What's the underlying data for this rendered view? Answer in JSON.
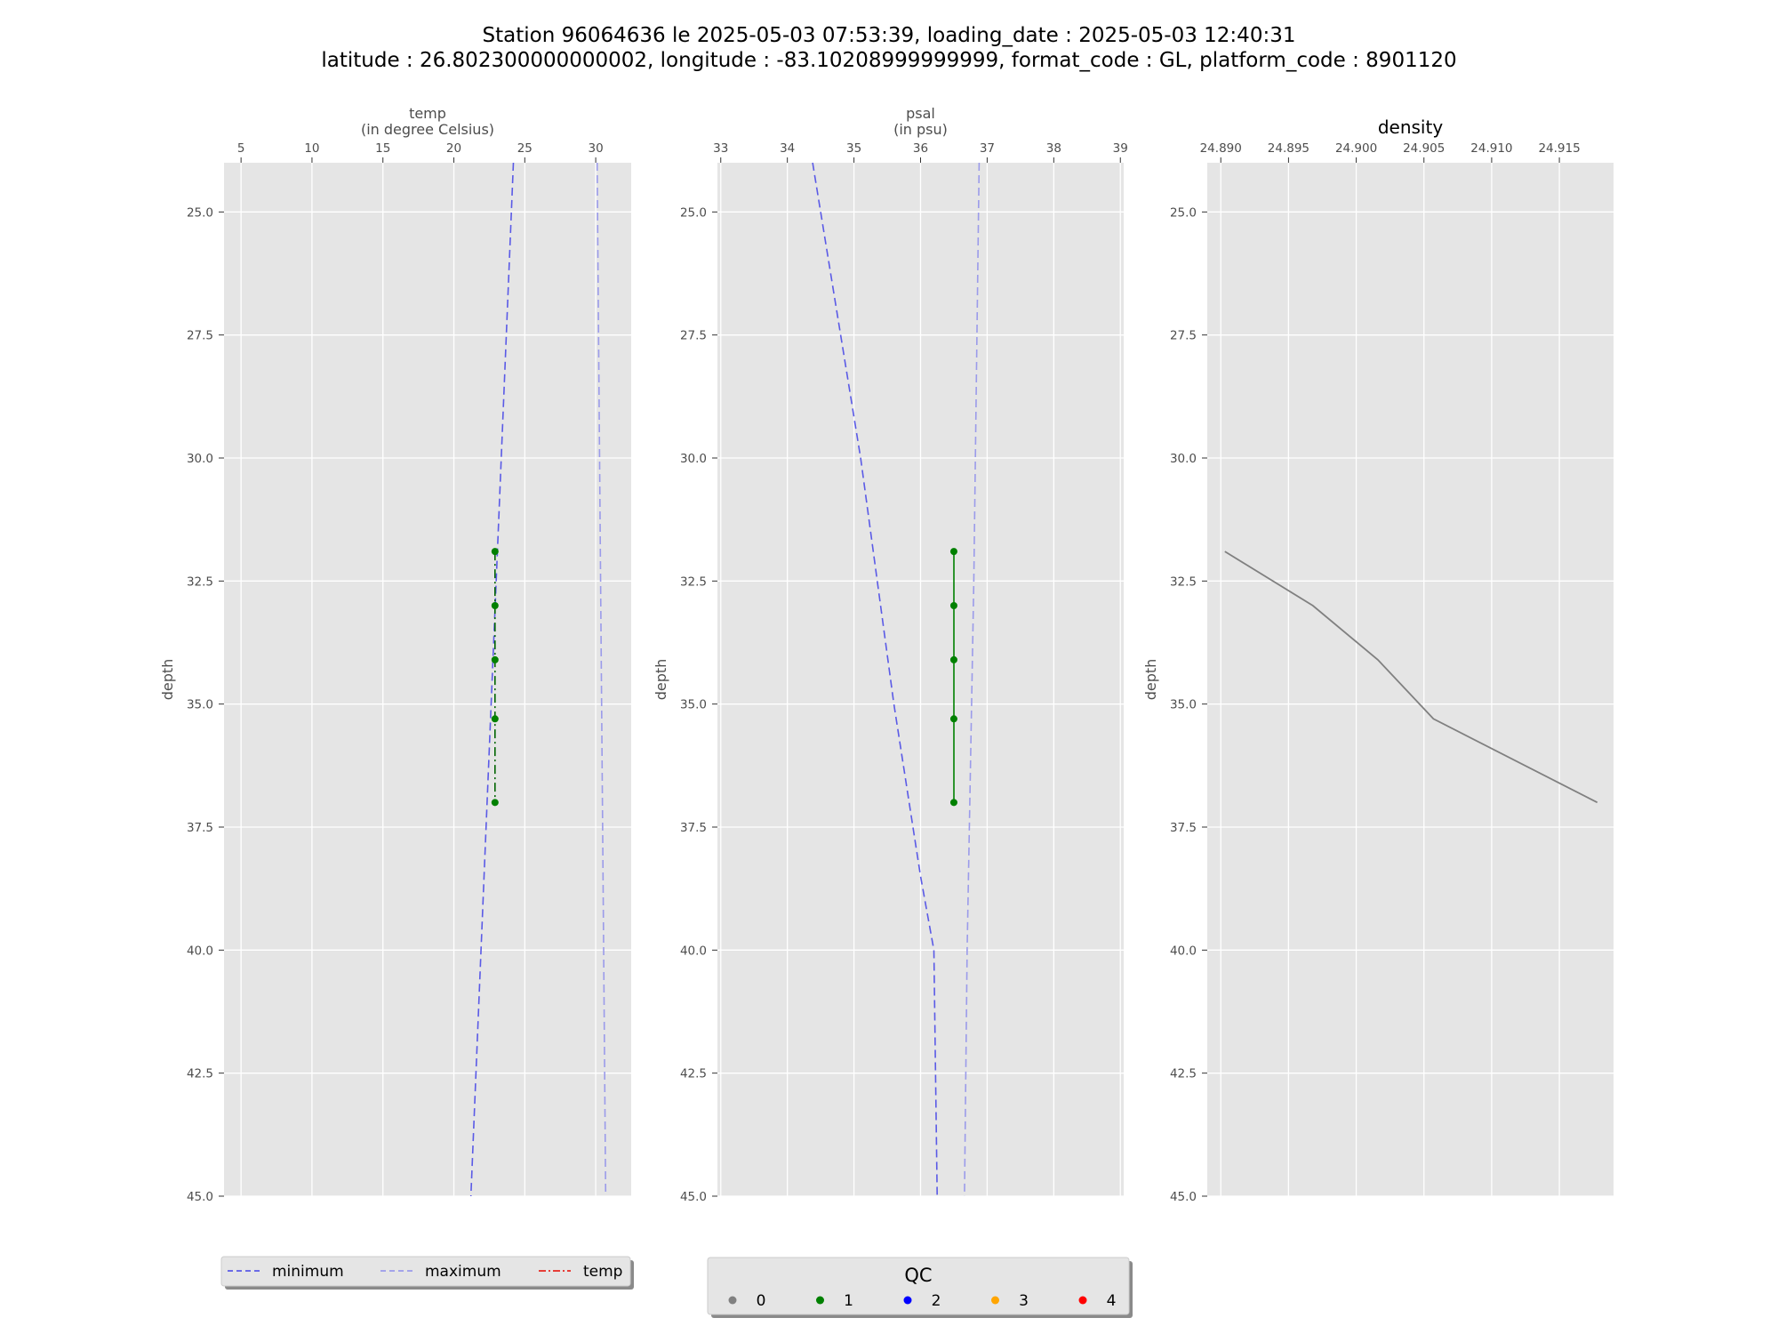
{
  "title": {
    "line1": "Station 96064636 le 2025-05-03 07:53:39, loading_date : 2025-05-03 12:40:31",
    "line2": "latitude : 26.802300000000002, longitude : -83.10208999999999, format_code : GL, platform_code : 8901120"
  },
  "colors": {
    "background": "#e5e5e5",
    "grid": "#ffffff",
    "minimum": "#5a5ae6",
    "maximum": "#9b9bea",
    "temp": "#e6261f",
    "qc0": "#808080",
    "qc1": "#008000",
    "qc2": "#0000ff",
    "qc3": "#ffa500",
    "qc4": "#ff0000",
    "density_line": "#808080"
  },
  "chart_data": [
    {
      "type": "line",
      "id": "temp",
      "xlabel": "temp\n(in degree Celsius)",
      "ylabel": "depth",
      "x_axis_position": "top",
      "xlim": [
        3.8,
        32.5
      ],
      "ylim": [
        45.0,
        24.0
      ],
      "y_inverted": true,
      "xticks": [
        5,
        10,
        15,
        20,
        25,
        30
      ],
      "yticks": [
        25.0,
        27.5,
        30.0,
        32.5,
        35.0,
        37.5,
        40.0,
        42.5,
        45.0
      ],
      "grid": true,
      "series": [
        {
          "name": "minimum",
          "style": "dashed",
          "x": [
            24.2,
            21.2
          ],
          "y": [
            24.0,
            45.0
          ]
        },
        {
          "name": "maximum",
          "style": "dashed",
          "x": [
            30.1,
            30.7
          ],
          "y": [
            24.0,
            45.0
          ]
        },
        {
          "name": "temp",
          "style": "dashdot",
          "line_color": "#006400",
          "marker_qc": 1,
          "x": [
            22.9,
            22.9,
            22.9,
            22.9,
            22.9
          ],
          "y": [
            31.9,
            33.0,
            34.1,
            35.3,
            37.0
          ]
        }
      ],
      "legend": {
        "placement": "bottom",
        "entries": [
          "minimum",
          "maximum",
          "temp"
        ]
      }
    },
    {
      "type": "line",
      "id": "psal",
      "xlabel": "psal\n(in psu)",
      "ylabel": "depth",
      "x_axis_position": "top",
      "xlim": [
        32.95,
        39.05
      ],
      "ylim": [
        45.0,
        24.0
      ],
      "y_inverted": true,
      "xticks": [
        33,
        34,
        35,
        36,
        37,
        38,
        39
      ],
      "yticks": [
        25.0,
        27.5,
        30.0,
        32.5,
        35.0,
        37.5,
        40.0,
        42.5,
        45.0
      ],
      "grid": true,
      "series": [
        {
          "name": "minimum",
          "style": "dashed",
          "x": [
            34.38,
            35.1,
            35.6,
            36.0,
            36.2,
            36.25
          ],
          "y": [
            24.0,
            30.0,
            35.0,
            38.5,
            40.0,
            45.0
          ]
        },
        {
          "name": "maximum",
          "style": "dashed",
          "x": [
            36.88,
            36.8,
            36.7,
            36.66
          ],
          "y": [
            24.0,
            32.5,
            40.0,
            45.0
          ]
        },
        {
          "name": "psal",
          "style": "solid",
          "line_color": "#008000",
          "marker_qc": 1,
          "x": [
            36.5,
            36.5,
            36.5,
            36.5,
            36.5
          ],
          "y": [
            31.9,
            33.0,
            34.1,
            35.3,
            37.0
          ]
        }
      ]
    },
    {
      "type": "line",
      "id": "density",
      "title": "density",
      "ylabel": "depth",
      "x_axis_position": "top",
      "xlim": [
        24.889,
        24.919
      ],
      "ylim": [
        45.0,
        24.0
      ],
      "y_inverted": true,
      "xticks": [
        24.89,
        24.895,
        24.9,
        24.905,
        24.91,
        24.915
      ],
      "yticks": [
        25.0,
        27.5,
        30.0,
        32.5,
        35.0,
        37.5,
        40.0,
        42.5,
        45.0
      ],
      "grid": true,
      "series": [
        {
          "name": "density",
          "style": "solid",
          "x": [
            24.8903,
            24.8968,
            24.9016,
            24.9057,
            24.9178
          ],
          "y": [
            31.9,
            33.0,
            34.1,
            35.3,
            37.0
          ]
        }
      ]
    }
  ],
  "legend_qc": {
    "title": "QC",
    "entries": [
      {
        "label": "0",
        "color": "#808080"
      },
      {
        "label": "1",
        "color": "#008000"
      },
      {
        "label": "2",
        "color": "#0000ff"
      },
      {
        "label": "3",
        "color": "#ffa500"
      },
      {
        "label": "4",
        "color": "#ff0000"
      }
    ]
  }
}
